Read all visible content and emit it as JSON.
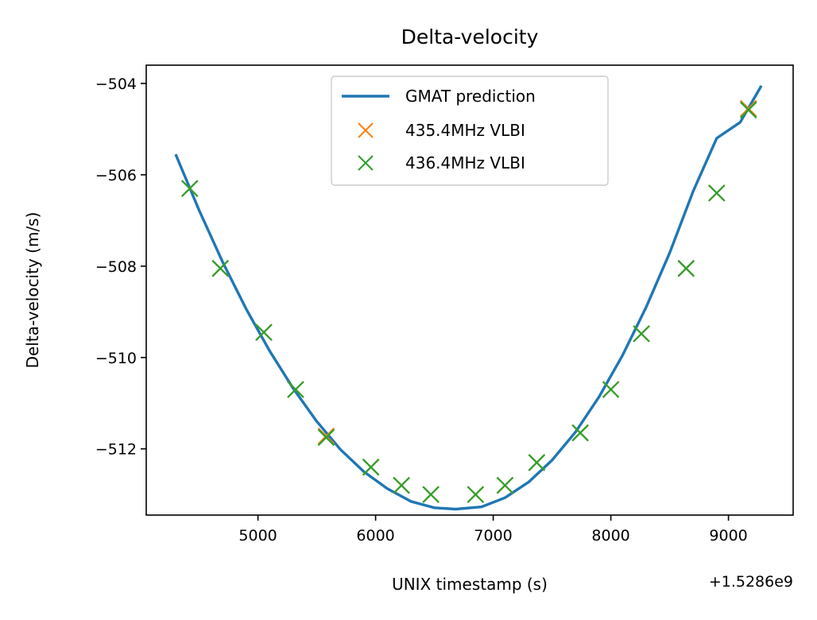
{
  "chart_data": {
    "type": "line",
    "title": "Delta-velocity",
    "xlabel": "UNIX timestamp (s)",
    "ylabel": "Delta-velocity (m/s)",
    "x_offset_label": "+1.5286e9",
    "xlim": [
      4050,
      9550
    ],
    "ylim": [
      -513.45,
      -503.6
    ],
    "x_ticks": [
      5000,
      6000,
      7000,
      8000,
      9000
    ],
    "x_tick_labels": [
      "5000",
      "6000",
      "7000",
      "8000",
      "9000"
    ],
    "y_ticks": [
      -504,
      -506,
      -508,
      -510,
      -512
    ],
    "y_tick_labels": [
      "−504",
      "−506",
      "−508",
      "−510",
      "−512"
    ],
    "grid": false,
    "legend_position": "upper center",
    "series": [
      {
        "name": "GMAT prediction",
        "kind": "line",
        "color": "#1f77b4",
        "x": [
          4300,
          4500,
          4700,
          4900,
          5100,
          5300,
          5500,
          5700,
          5900,
          6100,
          6300,
          6500,
          6680,
          6900,
          7100,
          7300,
          7500,
          7700,
          7900,
          8100,
          8300,
          8500,
          8700,
          8900,
          9100,
          9280
        ],
        "y": [
          -505.55,
          -506.78,
          -507.91,
          -508.94,
          -509.86,
          -510.68,
          -511.4,
          -512.01,
          -512.5,
          -512.87,
          -513.15,
          -513.29,
          -513.32,
          -513.27,
          -513.07,
          -512.73,
          -512.25,
          -511.63,
          -510.86,
          -509.95,
          -508.9,
          -507.71,
          -506.36,
          -505.2,
          -504.85,
          -504.05
        ]
      },
      {
        "name": "435.4MHz VLBI",
        "kind": "marker",
        "color": "#ff7f0e",
        "x": [
          4420,
          4680,
          5050,
          5320,
          5580,
          5960,
          6220,
          6470,
          6850,
          7100,
          7370,
          7740,
          8000,
          8260,
          8640,
          8900,
          9170
        ],
        "y": [
          -506.3,
          -508.05,
          -509.45,
          -510.7,
          -511.72,
          -512.4,
          -512.8,
          -513.0,
          -513.0,
          -512.8,
          -512.3,
          -511.65,
          -510.7,
          -509.48,
          -508.05,
          -506.4,
          -504.55
        ]
      },
      {
        "name": "436.4MHz VLBI",
        "kind": "marker",
        "color": "#2ca02c",
        "x": [
          4420,
          4680,
          5050,
          5320,
          5580,
          5960,
          6220,
          6470,
          6850,
          7100,
          7370,
          7740,
          8000,
          8260,
          8640,
          8900,
          9170
        ],
        "y": [
          -506.3,
          -508.05,
          -509.45,
          -510.7,
          -511.75,
          -512.4,
          -512.8,
          -513.0,
          -513.0,
          -512.8,
          -512.3,
          -511.65,
          -510.7,
          -509.48,
          -508.05,
          -506.4,
          -504.58
        ]
      }
    ]
  }
}
